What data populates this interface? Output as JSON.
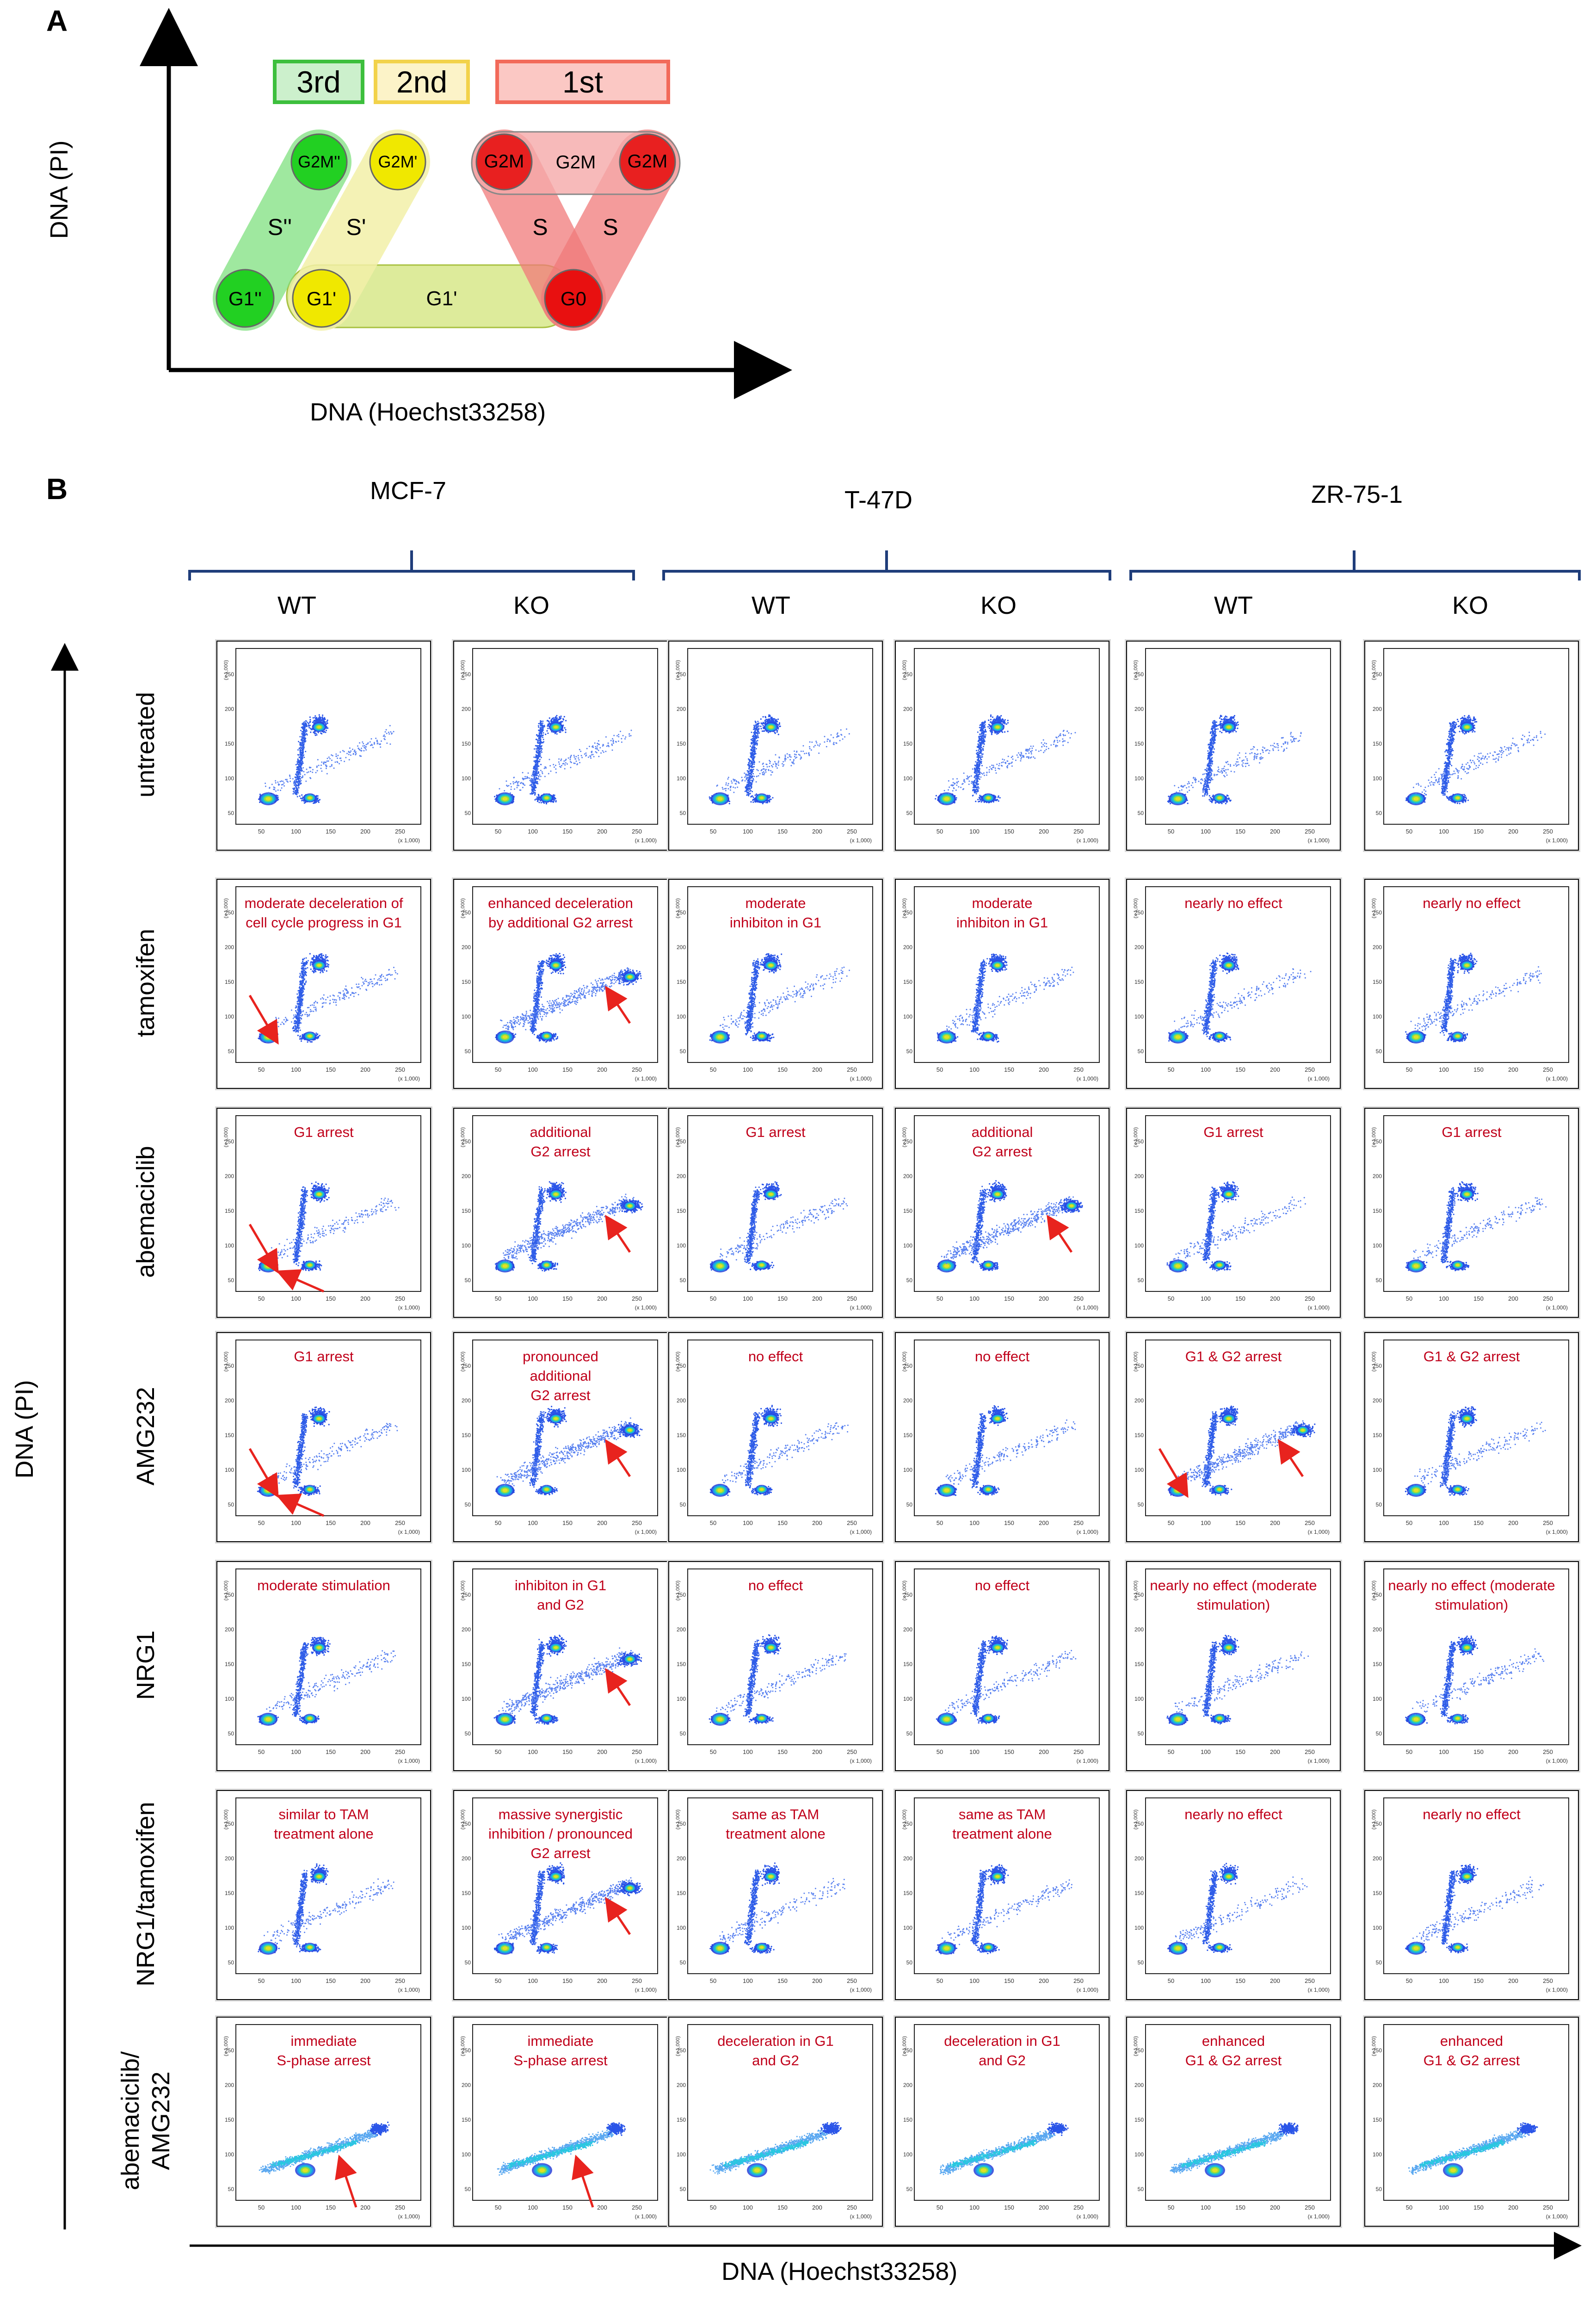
{
  "panel_a": {
    "letter": "A",
    "y_axis_label": "DNA (PI)",
    "x_axis_label": "DNA (Hoechst33258)",
    "headers": [
      {
        "label": "3rd",
        "color": "#3dbf3d",
        "fill": "#ccf0cc"
      },
      {
        "label": "2nd",
        "color": "#f2d24a",
        "fill": "#fcf3c8"
      },
      {
        "label": "1st",
        "color": "#f26a5a",
        "fill": "#fbc8c4"
      }
    ],
    "nodes": {
      "g2m_3": "G2M''",
      "g2m_2": "G2M'",
      "g2m_1a": "G2M",
      "g2m_mid": "G2M",
      "g2m_1b": "G2M",
      "s_3": "S''",
      "s_2": "S'",
      "s_1a": "S",
      "s_1b": "S",
      "g1_3": "G1''",
      "g1_2": "G1'",
      "g1_band": "G1'",
      "g0": "G0"
    }
  },
  "panel_b": {
    "letter": "B",
    "y_axis_label": "DNA (PI)",
    "x_axis_label": "DNA (Hoechst33258)",
    "cell_lines": [
      "MCF-7",
      "T-47D",
      "ZR-75-1"
    ],
    "genotypes": [
      "WT",
      "KO",
      "WT",
      "KO",
      "WT",
      "KO"
    ],
    "treatments": [
      {
        "name": "untreated",
        "lines": [
          "untreated"
        ]
      },
      {
        "name": "tamoxifen",
        "lines": [
          "tamoxifen"
        ]
      },
      {
        "name": "abemaciclib",
        "lines": [
          "abemaciclib"
        ]
      },
      {
        "name": "AMG232",
        "lines": [
          "AMG232"
        ]
      },
      {
        "name": "NRG1",
        "lines": [
          "NRG1"
        ]
      },
      {
        "name": "NRG1/tamoxifen",
        "lines": [
          "NRG1/tamoxifen"
        ]
      },
      {
        "name": "abemaciclib/AMG232",
        "lines": [
          "abemaciclib/",
          "AMG232"
        ]
      }
    ],
    "annotations": [
      [
        [],
        [],
        [],
        [],
        [],
        []
      ],
      [
        [
          "moderate deceleration of",
          "cell cycle progress in G1"
        ],
        [
          "enhanced deceleration",
          "by additional G2 arrest"
        ],
        [
          "moderate",
          "inhibiton in G1"
        ],
        [
          "moderate",
          "inhibiton in G1"
        ],
        [
          "nearly no effect"
        ],
        [
          "nearly no effect"
        ]
      ],
      [
        [
          "G1 arrest"
        ],
        [
          "additional",
          "G2 arrest"
        ],
        [
          "G1 arrest"
        ],
        [
          "additional",
          "G2 arrest"
        ],
        [
          "G1 arrest"
        ],
        [
          "G1 arrest"
        ]
      ],
      [
        [
          "G1 arrest"
        ],
        [
          "pronounced",
          "additional",
          "G2 arrest"
        ],
        [
          "no effect"
        ],
        [
          "no effect"
        ],
        [
          "G1 & G2 arrest"
        ],
        [
          "G1 & G2 arrest"
        ]
      ],
      [
        [
          "moderate stimulation"
        ],
        [
          "inhibiton in G1",
          "and  G2"
        ],
        [
          "no effect"
        ],
        [
          "no effect"
        ],
        [
          "nearly no effect (moderate",
          "stimulation)"
        ],
        [
          "nearly no effect (moderate",
          "stimulation)"
        ]
      ],
      [
        [
          "similar to TAM",
          "treatment alone"
        ],
        [
          "massive synergistic",
          "inhibition / pronounced",
          "G2 arrest"
        ],
        [
          "same as TAM",
          "treatment alone"
        ],
        [
          "same as TAM",
          "treatment alone"
        ],
        [
          "nearly no effect"
        ],
        [
          "nearly no effect"
        ]
      ],
      [
        [
          "immediate",
          "S-phase arrest"
        ],
        [
          "immediate",
          "S-phase arrest"
        ],
        [
          "deceleration in G1",
          "and G2"
        ],
        [
          "deceleration in G1",
          "and G2"
        ],
        [
          "enhanced",
          "G1 & G2 arrest"
        ],
        [
          "enhanced",
          "G1 & G2 arrest"
        ]
      ]
    ],
    "axis_ticks": {
      "x": [
        "50",
        "100",
        "150",
        "200",
        "250"
      ],
      "y": [
        "50",
        "100",
        "150",
        "200",
        "250"
      ],
      "unit": "(x 1,000)"
    },
    "arrows": [
      [
        [],
        [],
        [],
        [],
        [],
        []
      ],
      [
        [
          "G1"
        ],
        [
          "G2"
        ],
        [],
        [],
        [],
        []
      ],
      [
        [
          "G1",
          "G1-right"
        ],
        [
          "G2"
        ],
        [],
        [
          "G2"
        ],
        [],
        []
      ],
      [
        [
          "G1",
          "G1-right"
        ],
        [
          "G2"
        ],
        [],
        [],
        [
          "G1",
          "G2"
        ],
        []
      ],
      [
        [],
        [
          "G2"
        ],
        [],
        [],
        [],
        []
      ],
      [
        [],
        [
          "G2"
        ],
        [],
        [],
        [],
        []
      ],
      [
        [
          "S"
        ],
        [
          "S"
        ],
        [],
        [],
        [],
        []
      ]
    ],
    "colors": {
      "annotation": "#c0001a",
      "arrow": "#e8231e",
      "bracket": "#1f3d7a"
    }
  }
}
